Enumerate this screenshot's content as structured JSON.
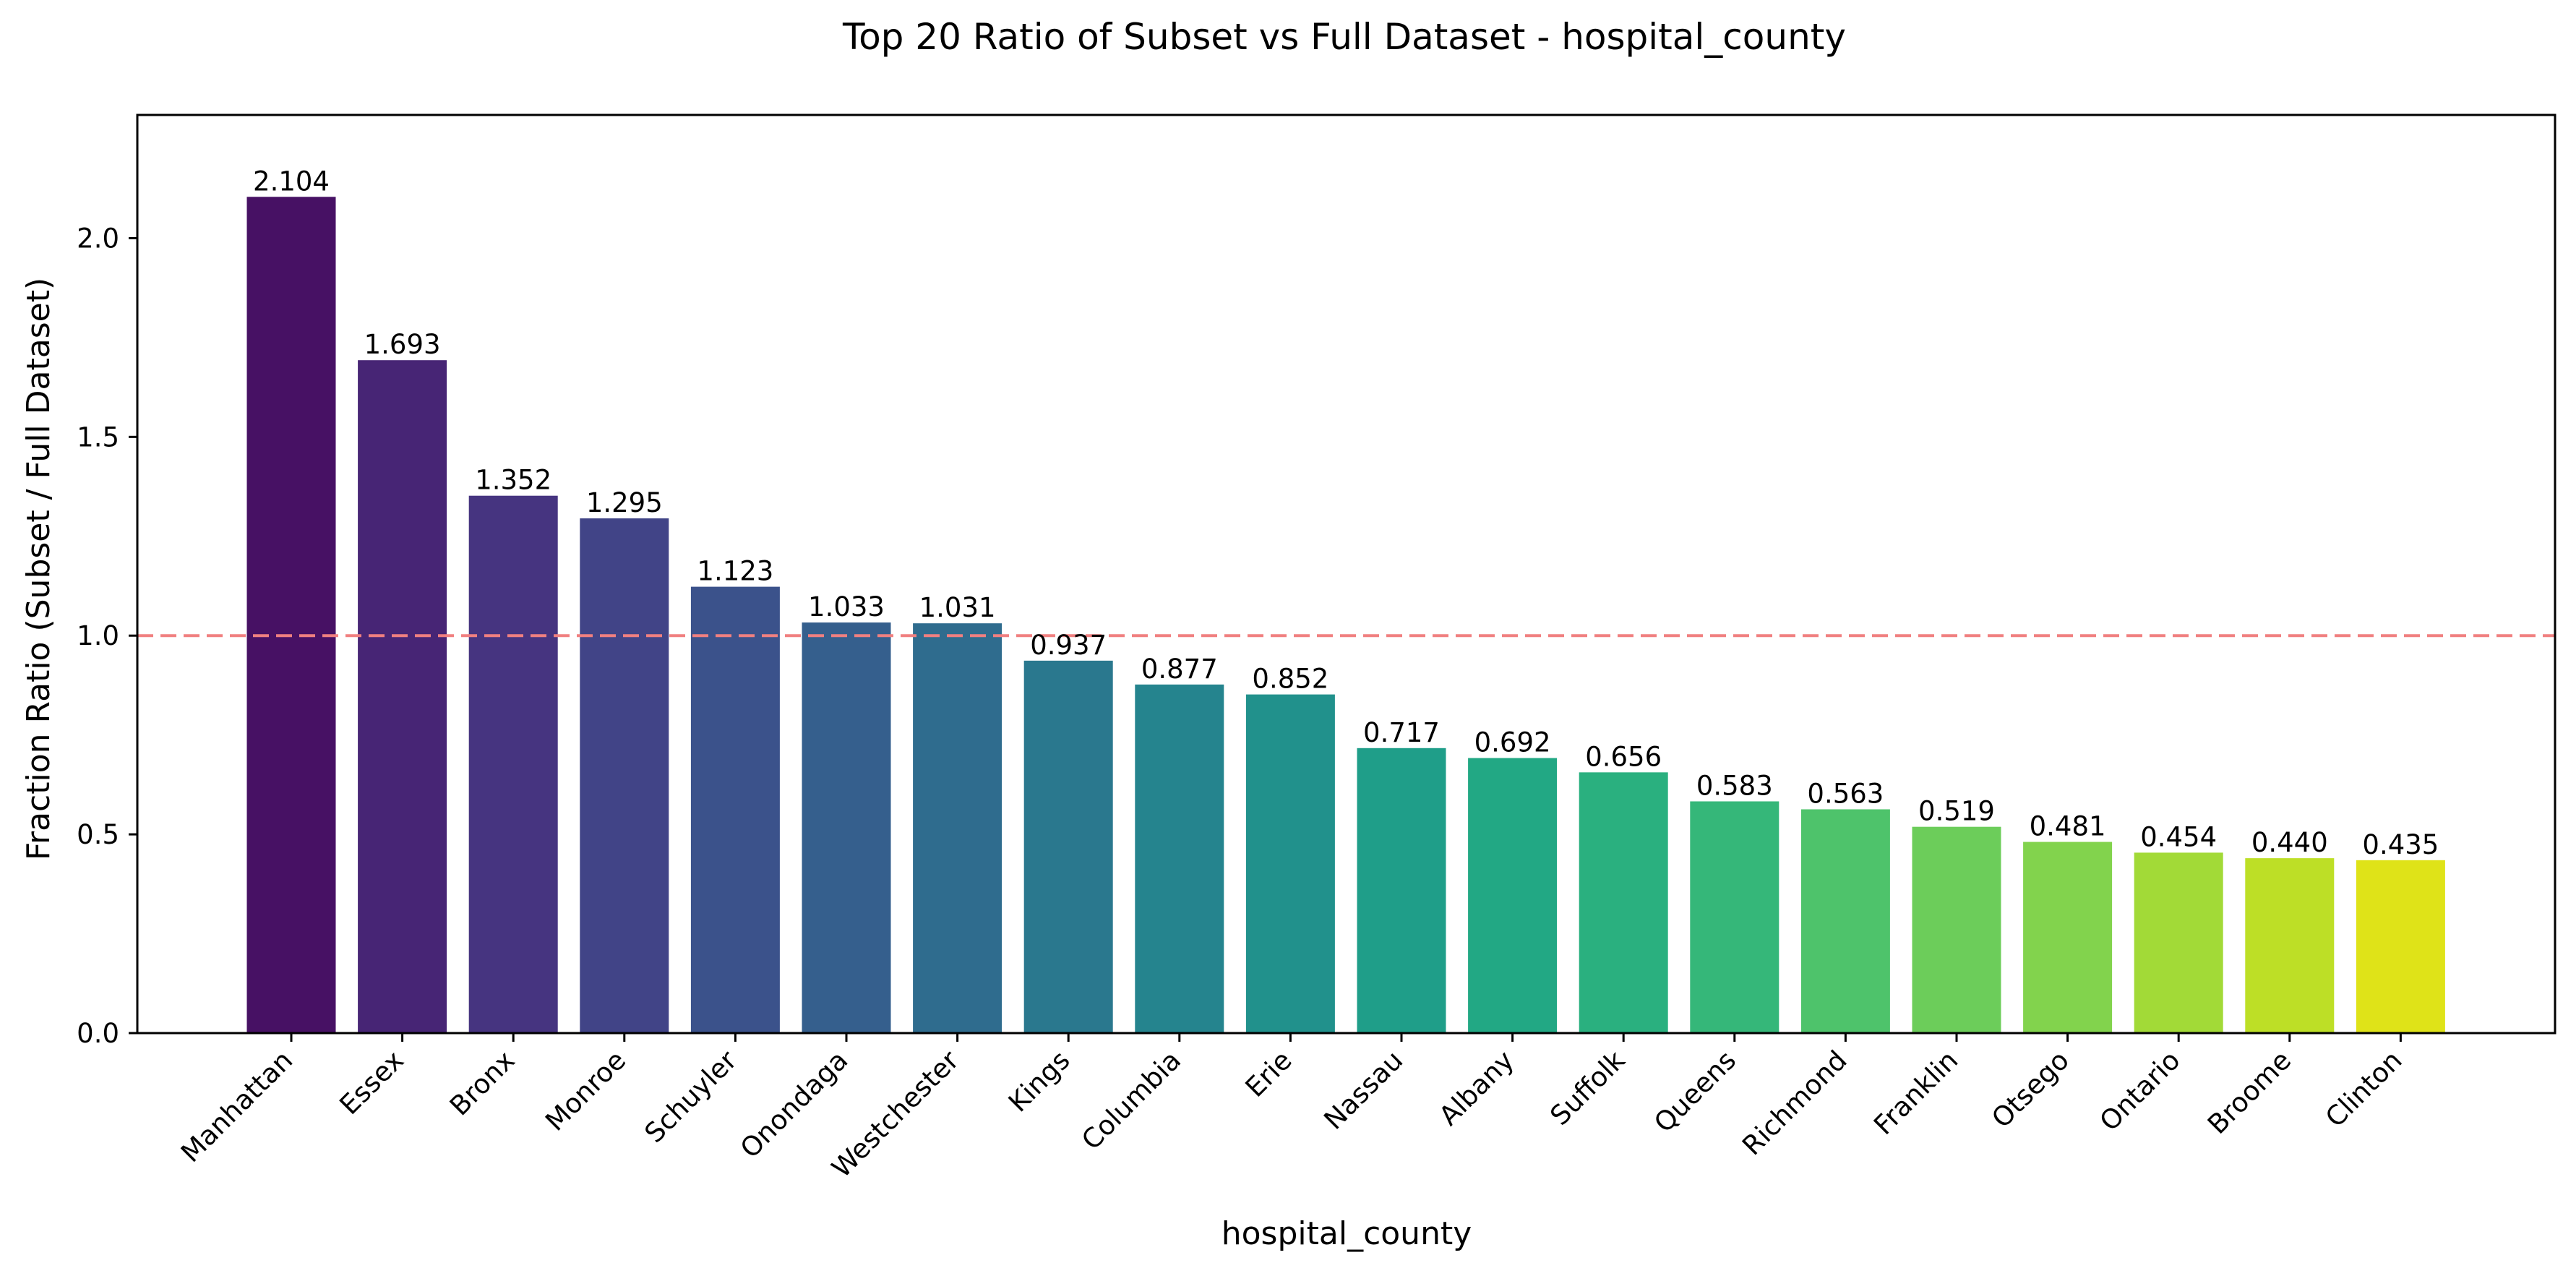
{
  "chart_data": {
    "type": "bar",
    "title": "Top 20 Ratio of Subset vs Full Dataset - hospital_county",
    "xlabel": "hospital_county",
    "ylabel": "Fraction Ratio (Subset / Full Dataset)",
    "categories": [
      "Manhattan",
      "Essex",
      "Bronx",
      "Monroe",
      "Schuyler",
      "Onondaga",
      "Westchester",
      "Kings",
      "Columbia",
      "Erie",
      "Nassau",
      "Albany",
      "Suffolk",
      "Queens",
      "Richmond",
      "Franklin",
      "Otsego",
      "Ontario",
      "Broome",
      "Clinton"
    ],
    "values": [
      2.104,
      1.693,
      1.352,
      1.295,
      1.123,
      1.033,
      1.031,
      0.937,
      0.877,
      0.852,
      0.717,
      0.692,
      0.656,
      0.583,
      0.563,
      0.519,
      0.481,
      0.454,
      0.44,
      0.435
    ],
    "value_labels": [
      "2.104",
      "1.693",
      "1.352",
      "1.295",
      "1.123",
      "1.033",
      "1.031",
      "0.937",
      "0.877",
      "0.852",
      "0.717",
      "0.692",
      "0.656",
      "0.583",
      "0.563",
      "0.519",
      "0.481",
      "0.454",
      "0.440",
      "0.435"
    ],
    "bar_colors": [
      "#471164",
      "#472575",
      "#463480",
      "#414487",
      "#3b528b",
      "#355f8d",
      "#2f6c8e",
      "#2a788e",
      "#25848e",
      "#21918c",
      "#1f9e89",
      "#22a884",
      "#2ab07f",
      "#35b779",
      "#4ec36b",
      "#6ccd5a",
      "#82d34d",
      "#a2da37",
      "#bddf26",
      "#dfe318"
    ],
    "yticks": [
      0.0,
      0.5,
      1.0,
      1.5,
      2.0
    ],
    "ytick_labels": [
      "0.0",
      "0.5",
      "1.0",
      "1.5",
      "2.0"
    ],
    "ylim": [
      0,
      2.31
    ],
    "reference_line": {
      "y": 1.0,
      "style": "dashed",
      "color": "#f08080"
    },
    "grid": false,
    "legend": "none"
  }
}
